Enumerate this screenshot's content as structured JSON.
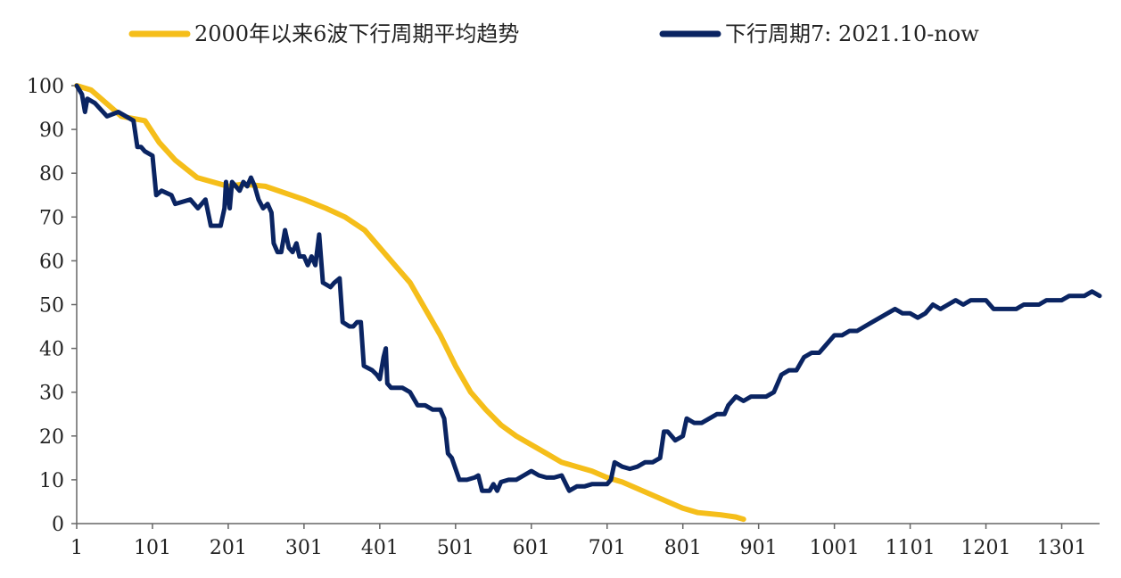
{
  "chart_data": {
    "type": "line",
    "title": "",
    "xlabel": "",
    "ylabel": "",
    "xlim": [
      1,
      1351
    ],
    "ylim": [
      0,
      100
    ],
    "grid": false,
    "legend_position": "top-center",
    "x_ticks": [
      1,
      101,
      201,
      301,
      401,
      501,
      601,
      701,
      801,
      901,
      1001,
      1101,
      1201,
      1301
    ],
    "y_ticks": [
      0,
      10,
      20,
      30,
      40,
      50,
      60,
      70,
      80,
      90,
      100
    ],
    "series": [
      {
        "name": "2000年以来6波下行周期平均趋势",
        "color": "#F5BE1A",
        "points": [
          [
            1,
            100
          ],
          [
            20,
            99
          ],
          [
            40,
            96
          ],
          [
            60,
            93
          ],
          [
            91,
            92
          ],
          [
            110,
            87
          ],
          [
            131,
            83
          ],
          [
            160,
            79
          ],
          [
            201,
            77
          ],
          [
            221,
            77.5
          ],
          [
            250,
            77
          ],
          [
            301,
            74
          ],
          [
            330,
            72
          ],
          [
            355,
            70
          ],
          [
            381,
            67
          ],
          [
            401,
            63
          ],
          [
            421,
            59
          ],
          [
            441,
            55
          ],
          [
            461,
            49
          ],
          [
            481,
            43
          ],
          [
            501,
            36
          ],
          [
            521,
            30
          ],
          [
            541,
            26
          ],
          [
            561,
            22.5
          ],
          [
            581,
            20
          ],
          [
            601,
            18
          ],
          [
            621,
            16
          ],
          [
            641,
            14
          ],
          [
            661,
            13
          ],
          [
            681,
            12
          ],
          [
            701,
            10.5
          ],
          [
            721,
            9.5
          ],
          [
            741,
            8
          ],
          [
            761,
            6.5
          ],
          [
            781,
            5
          ],
          [
            801,
            3.5
          ],
          [
            821,
            2.5
          ],
          [
            851,
            2
          ],
          [
            871,
            1.5
          ],
          [
            881,
            1
          ]
        ]
      },
      {
        "name": "下行周期7: 2021.10-now",
        "color": "#0A2462",
        "points": [
          [
            1,
            100
          ],
          [
            8,
            98
          ],
          [
            12,
            94
          ],
          [
            15,
            97
          ],
          [
            25,
            96
          ],
          [
            41,
            93
          ],
          [
            56,
            94
          ],
          [
            66,
            93
          ],
          [
            76,
            92
          ],
          [
            81,
            86
          ],
          [
            86,
            86
          ],
          [
            91,
            85
          ],
          [
            101,
            84
          ],
          [
            106,
            75
          ],
          [
            113,
            76
          ],
          [
            126,
            75
          ],
          [
            131,
            73
          ],
          [
            151,
            74
          ],
          [
            161,
            72
          ],
          [
            171,
            74
          ],
          [
            178,
            68
          ],
          [
            191,
            68
          ],
          [
            196,
            72
          ],
          [
            198,
            78
          ],
          [
            203,
            72
          ],
          [
            206,
            78
          ],
          [
            211,
            77
          ],
          [
            216,
            76
          ],
          [
            221,
            78
          ],
          [
            226,
            77
          ],
          [
            231,
            79
          ],
          [
            236,
            77
          ],
          [
            241,
            74
          ],
          [
            247,
            72
          ],
          [
            253,
            73
          ],
          [
            258,
            71
          ],
          [
            261,
            64
          ],
          [
            266,
            62
          ],
          [
            271,
            62
          ],
          [
            276,
            67
          ],
          [
            281,
            63
          ],
          [
            286,
            62
          ],
          [
            291,
            64
          ],
          [
            295,
            61
          ],
          [
            301,
            61
          ],
          [
            306,
            59
          ],
          [
            311,
            61
          ],
          [
            316,
            59
          ],
          [
            321,
            66
          ],
          [
            326,
            55
          ],
          [
            336,
            54
          ],
          [
            341,
            55
          ],
          [
            348,
            56
          ],
          [
            352,
            46
          ],
          [
            361,
            45
          ],
          [
            366,
            45
          ],
          [
            371,
            46
          ],
          [
            376,
            46
          ],
          [
            380,
            36
          ],
          [
            391,
            35
          ],
          [
            397,
            34
          ],
          [
            401,
            33
          ],
          [
            406,
            38
          ],
          [
            409,
            40
          ],
          [
            411,
            32
          ],
          [
            416,
            31
          ],
          [
            431,
            31
          ],
          [
            441,
            30
          ],
          [
            451,
            27
          ],
          [
            461,
            27
          ],
          [
            471,
            26
          ],
          [
            481,
            26
          ],
          [
            486,
            24
          ],
          [
            491,
            16
          ],
          [
            496,
            15
          ],
          [
            506,
            10
          ],
          [
            516,
            10
          ],
          [
            526,
            10.5
          ],
          [
            531,
            11
          ],
          [
            536,
            7.5
          ],
          [
            546,
            7.5
          ],
          [
            551,
            9
          ],
          [
            556,
            7.5
          ],
          [
            561,
            9.5
          ],
          [
            571,
            10
          ],
          [
            581,
            10
          ],
          [
            591,
            11
          ],
          [
            601,
            12
          ],
          [
            611,
            11
          ],
          [
            621,
            10.5
          ],
          [
            631,
            10.5
          ],
          [
            641,
            11
          ],
          [
            651,
            7.5
          ],
          [
            661,
            8.5
          ],
          [
            671,
            8.5
          ],
          [
            681,
            9
          ],
          [
            691,
            9
          ],
          [
            701,
            9
          ],
          [
            706,
            10
          ],
          [
            711,
            14
          ],
          [
            721,
            13
          ],
          [
            731,
            12.5
          ],
          [
            741,
            13
          ],
          [
            751,
            14
          ],
          [
            761,
            14
          ],
          [
            771,
            15
          ],
          [
            776,
            21
          ],
          [
            781,
            21
          ],
          [
            786,
            20
          ],
          [
            791,
            19
          ],
          [
            801,
            20
          ],
          [
            806,
            24
          ],
          [
            816,
            23
          ],
          [
            826,
            23
          ],
          [
            836,
            24
          ],
          [
            846,
            25
          ],
          [
            856,
            25
          ],
          [
            861,
            27
          ],
          [
            871,
            29
          ],
          [
            881,
            28
          ],
          [
            891,
            29
          ],
          [
            901,
            29
          ],
          [
            911,
            29
          ],
          [
            921,
            30
          ],
          [
            931,
            34
          ],
          [
            941,
            35
          ],
          [
            951,
            35
          ],
          [
            961,
            38
          ],
          [
            971,
            39
          ],
          [
            981,
            39
          ],
          [
            991,
            41
          ],
          [
            1001,
            43
          ],
          [
            1011,
            43
          ],
          [
            1021,
            44
          ],
          [
            1031,
            44
          ],
          [
            1041,
            45
          ],
          [
            1051,
            46
          ],
          [
            1061,
            47
          ],
          [
            1071,
            48
          ],
          [
            1081,
            49
          ],
          [
            1091,
            48
          ],
          [
            1101,
            48
          ],
          [
            1111,
            47
          ],
          [
            1121,
            48
          ],
          [
            1131,
            50
          ],
          [
            1141,
            49
          ],
          [
            1151,
            50
          ],
          [
            1161,
            51
          ],
          [
            1171,
            50
          ],
          [
            1181,
            51
          ],
          [
            1191,
            51
          ],
          [
            1201,
            51
          ],
          [
            1211,
            49
          ],
          [
            1221,
            49
          ],
          [
            1231,
            49
          ],
          [
            1241,
            49
          ],
          [
            1251,
            50
          ],
          [
            1261,
            50
          ],
          [
            1271,
            50
          ],
          [
            1281,
            51
          ],
          [
            1291,
            51
          ],
          [
            1301,
            51
          ],
          [
            1311,
            52
          ],
          [
            1321,
            52
          ],
          [
            1331,
            52
          ],
          [
            1341,
            53
          ],
          [
            1351,
            52
          ]
        ]
      }
    ]
  }
}
